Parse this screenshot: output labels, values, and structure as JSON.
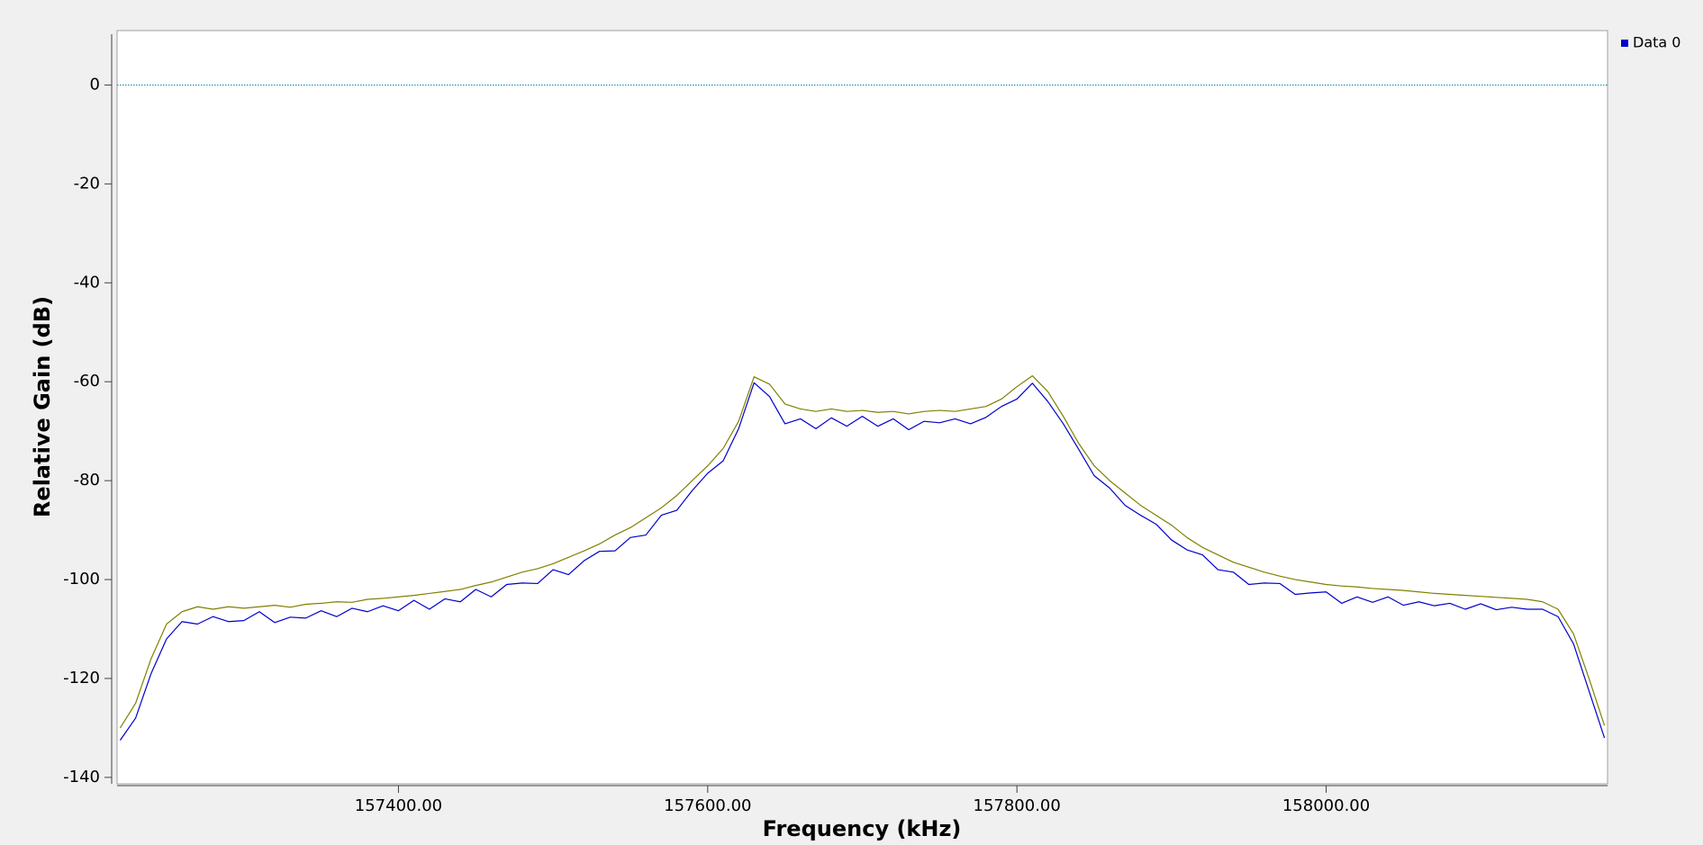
{
  "chart_data": {
    "type": "line",
    "x_label": "Frequency (kHz)",
    "y_label": "Relative Gain (dB)",
    "xlim": [
      157218,
      158182
    ],
    "ylim": [
      -141.3,
      11
    ],
    "xticks": [
      {
        "value": 157400,
        "label": "157400.00"
      },
      {
        "value": 157600,
        "label": "157600.00"
      },
      {
        "value": 157800,
        "label": "157800.00"
      },
      {
        "value": 158000,
        "label": "158000.00"
      }
    ],
    "yticks": [
      0,
      -20,
      -40,
      -60,
      -80,
      -100,
      -120,
      -140
    ],
    "reference_line": 0,
    "reference_line_color": "#0088aa",
    "legend": "upper right",
    "x": [
      157220,
      157230,
      157240,
      157250,
      157260,
      157270,
      157280,
      157290,
      157300,
      157310,
      157320,
      157330,
      157340,
      157350,
      157360,
      157370,
      157380,
      157390,
      157400,
      157410,
      157420,
      157430,
      157440,
      157450,
      157460,
      157470,
      157480,
      157490,
      157500,
      157510,
      157520,
      157530,
      157540,
      157550,
      157560,
      157570,
      157580,
      157590,
      157600,
      157610,
      157620,
      157630,
      157640,
      157650,
      157660,
      157670,
      157680,
      157690,
      157700,
      157710,
      157720,
      157730,
      157740,
      157750,
      157760,
      157770,
      157780,
      157790,
      157800,
      157810,
      157820,
      157830,
      157840,
      157850,
      157860,
      157870,
      157880,
      157890,
      157900,
      157910,
      157920,
      157930,
      157940,
      157950,
      157960,
      157970,
      157980,
      157990,
      158000,
      158010,
      158020,
      158030,
      158040,
      158050,
      158060,
      158070,
      158080,
      158090,
      158100,
      158110,
      158120,
      158130,
      158140,
      158150,
      158160,
      158170,
      158180
    ],
    "series": [
      {
        "color": "#808000",
        "values": [
          -130,
          -125,
          -116,
          -109,
          -106.5,
          -105.5,
          -106,
          -105.5,
          -105.8,
          -105.5,
          -105.2,
          -105.6,
          -105,
          -104.8,
          -104.5,
          -104.6,
          -104,
          -103.8,
          -103.5,
          -103.2,
          -102.8,
          -102.4,
          -102,
          -101.2,
          -100.5,
          -99.5,
          -98.5,
          -97.8,
          -96.8,
          -95.5,
          -94.2,
          -92.8,
          -91,
          -89.5,
          -87.5,
          -85.5,
          -83,
          -80,
          -77,
          -73.5,
          -68,
          -59,
          -60.5,
          -64.5,
          -65.5,
          -66,
          -65.5,
          -66,
          -65.8,
          -66.2,
          -66,
          -66.5,
          -66,
          -65.8,
          -66,
          -65.5,
          -65,
          -63.5,
          -61,
          -58.8,
          -62,
          -67,
          -72.5,
          -77,
          -80,
          -82.5,
          -85,
          -87,
          -89,
          -91.5,
          -93.5,
          -95,
          -96.5,
          -97.5,
          -98.5,
          -99.3,
          -100,
          -100.5,
          -101,
          -101.3,
          -101.5,
          -101.8,
          -102,
          -102.2,
          -102.5,
          -102.8,
          -103,
          -103.2,
          -103.4,
          -103.6,
          -103.8,
          -104,
          -104.5,
          -106,
          -111,
          -120,
          -129.5
        ]
      },
      {
        "name": "Data 0",
        "color": "#0000cc",
        "values": [
          -132.5,
          -128,
          -119,
          -112,
          -108.5,
          -109,
          -107.5,
          -108.5,
          -108.3,
          -106.5,
          -108.7,
          -107.6,
          -107.8,
          -106.3,
          -107.5,
          -105.8,
          -106.5,
          -105.3,
          -106.3,
          -104.2,
          -106,
          -103.9,
          -104.5,
          -102,
          -103.5,
          -101,
          -100.7,
          -100.8,
          -98,
          -99,
          -96.2,
          -94.3,
          -94.2,
          -91.5,
          -91,
          -87,
          -86,
          -82,
          -78.5,
          -76,
          -69.5,
          -60.2,
          -63,
          -68.5,
          -67.5,
          -69.5,
          -67.3,
          -69,
          -67,
          -69,
          -67.5,
          -69.7,
          -68,
          -68.3,
          -67.5,
          -68.5,
          -67.2,
          -65,
          -63.5,
          -60.3,
          -64,
          -68.5,
          -73.7,
          -79,
          -81.5,
          -85,
          -87,
          -88.8,
          -92,
          -94,
          -95,
          -98,
          -98.5,
          -101,
          -100.7,
          -100.8,
          -103,
          -102.7,
          -102.5,
          -104.8,
          -103.5,
          -104.6,
          -103.5,
          -105.2,
          -104.5,
          -105.3,
          -104.8,
          -106,
          -104.9,
          -106.1,
          -105.6,
          -106,
          -106,
          -107.5,
          -113,
          -122.5,
          -132
        ]
      }
    ]
  }
}
